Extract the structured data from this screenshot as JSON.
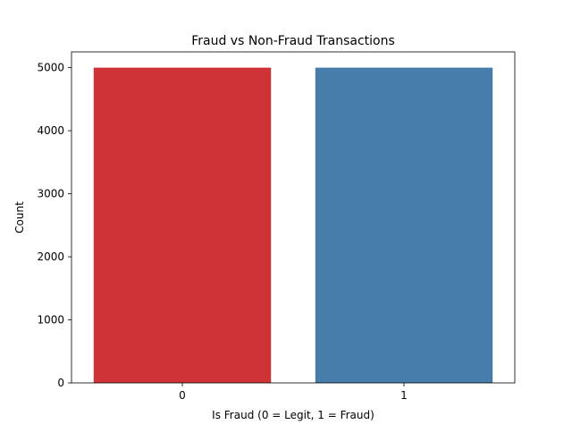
{
  "chart_data": {
    "type": "bar",
    "title": "Fraud vs Non-Fraud Transactions",
    "xlabel": "Is Fraud (0 = Legit, 1 = Fraud)",
    "ylabel": "Count",
    "categories": [
      "0",
      "1"
    ],
    "values": [
      5000,
      5000
    ],
    "bar_colors": [
      "#d03337",
      "#477dab"
    ],
    "ylim": [
      0,
      5250
    ],
    "yticks": [
      0,
      1000,
      2000,
      3000,
      4000,
      5000
    ],
    "ytick_labels": [
      "0",
      "1000",
      "2000",
      "3000",
      "4000",
      "5000"
    ],
    "grid": false,
    "legend": "none"
  }
}
